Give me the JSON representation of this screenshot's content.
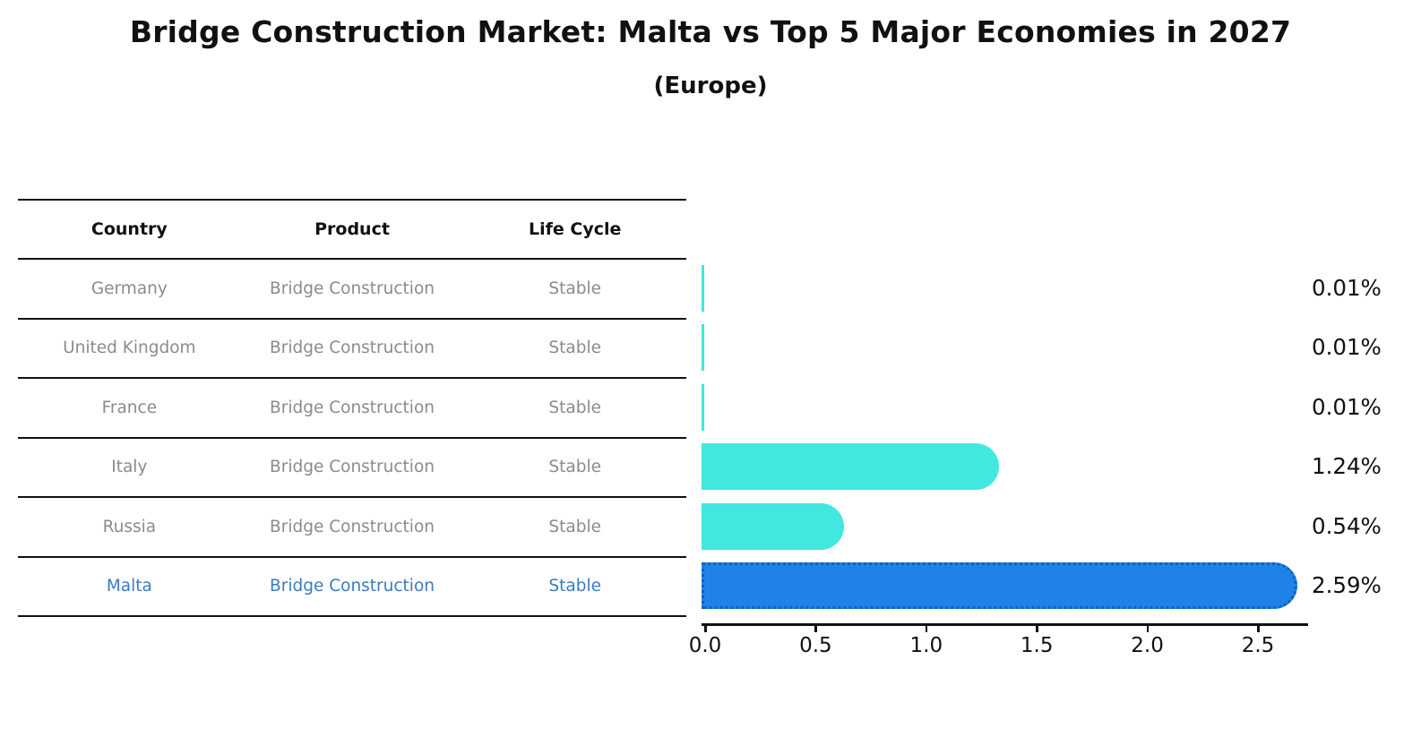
{
  "title": "Bridge Construction Market: Malta vs Top 5 Major Economies in 2027",
  "subtitle": "(Europe)",
  "table": {
    "headers": [
      "Country",
      "Product",
      "Life Cycle"
    ],
    "rows": [
      {
        "country": "Germany",
        "product": "Bridge Construction",
        "life_cycle": "Stable",
        "highlight": false
      },
      {
        "country": "United Kingdom",
        "product": "Bridge Construction",
        "life_cycle": "Stable",
        "highlight": false
      },
      {
        "country": "France",
        "product": "Bridge Construction",
        "life_cycle": "Stable",
        "highlight": false
      },
      {
        "country": "Italy",
        "product": "Bridge Construction",
        "life_cycle": "Stable",
        "highlight": false
      },
      {
        "country": "Russia",
        "product": "Bridge Construction",
        "life_cycle": "Stable",
        "highlight": false
      },
      {
        "country": "Malta",
        "product": "Bridge Construction",
        "life_cycle": "Stable",
        "highlight": true
      }
    ]
  },
  "chart_data": {
    "type": "bar",
    "orientation": "horizontal",
    "title": "Bridge Construction Market: Malta vs Top 5 Major Economies in 2027",
    "subtitle": "(Europe)",
    "categories": [
      "Germany",
      "United Kingdom",
      "France",
      "Italy",
      "Russia",
      "Malta"
    ],
    "values": [
      0.01,
      0.01,
      0.01,
      1.24,
      0.54,
      2.59
    ],
    "value_labels": [
      "0.01%",
      "0.01%",
      "0.01%",
      "1.24%",
      "0.54%",
      "2.59%"
    ],
    "xlabel": "",
    "ylabel": "",
    "xlim": [
      0,
      2.74
    ],
    "xticks": [
      0.0,
      0.5,
      1.0,
      1.5,
      2.0,
      2.5
    ],
    "xtick_labels": [
      "0.0",
      "0.5",
      "1.0",
      "1.5",
      "2.0",
      "2.5"
    ],
    "grid": false,
    "legend": false,
    "highlight_index": 5,
    "highlight_category": "Malta"
  },
  "colors": {
    "bar": "#40e8e0",
    "highlight_bar": "#1e82e8",
    "highlight_bar_border": "#1360b8",
    "row_text": "#8b8b8b",
    "highlight_text": "#3a7bbf",
    "header_text": "#111111",
    "axis": "#111111"
  }
}
